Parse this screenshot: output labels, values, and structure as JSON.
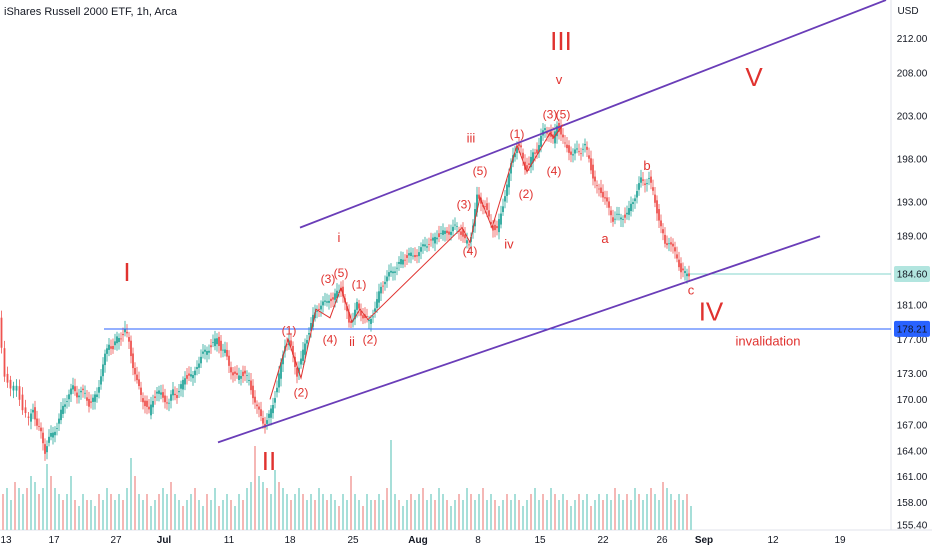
{
  "header": {
    "title": "iShares Russell 2000 ETF, 1h, Arca"
  },
  "chart_data": {
    "type": "candlestick",
    "title": "iShares Russell 2000 ETF, 1h, Arca",
    "currency_label": "USD",
    "colors": {
      "up": "#26a69a",
      "down": "#ef5350",
      "channel": "#6a3db8",
      "label": "#e0322f",
      "tag": "#86d6cc"
    },
    "x_range": [
      0,
      932
    ],
    "y_axis_ticks": [
      "212.00",
      "208.00",
      "203.00",
      "198.00",
      "193.00",
      "189.00",
      "181.00",
      "177.00",
      "173.00",
      "170.00",
      "167.00",
      "164.00",
      "161.00",
      "158.00",
      "155.40"
    ],
    "x_axis_ticks": [
      "13",
      "17",
      "27",
      "Jul",
      "11",
      "18",
      "25",
      "Aug",
      "8",
      "15",
      "22",
      "26",
      "Sep",
      "12",
      "19"
    ],
    "price_tags": [
      {
        "label": "184.60",
        "value": 184.6,
        "kind": "last-price"
      },
      {
        "label": "178.21",
        "value": 178.21,
        "kind": "invalidation-level"
      }
    ],
    "ylim": [
      154.8,
      216.5
    ],
    "path_points": [
      [
        0,
        179.5
      ],
      [
        6,
        173
      ],
      [
        12,
        171
      ],
      [
        18,
        171.6
      ],
      [
        24,
        169
      ],
      [
        30,
        167.5
      ],
      [
        34,
        169
      ],
      [
        38,
        167
      ],
      [
        42,
        166
      ],
      [
        46,
        164
      ],
      [
        50,
        165.5
      ],
      [
        54,
        166
      ],
      [
        58,
        167
      ],
      [
        62,
        168.5
      ],
      [
        66,
        169.5
      ],
      [
        70,
        170.8
      ],
      [
        74,
        171.3
      ],
      [
        78,
        170.5
      ],
      [
        82,
        171
      ],
      [
        86,
        170.5
      ],
      [
        90,
        169.5
      ],
      [
        94,
        170
      ],
      [
        98,
        170.5
      ],
      [
        102,
        173
      ],
      [
        106,
        175
      ],
      [
        110,
        176.5
      ],
      [
        114,
        176
      ],
      [
        118,
        177
      ],
      [
        122,
        177.3
      ],
      [
        126,
        178.2
      ],
      [
        130,
        176.5
      ],
      [
        134,
        174
      ],
      [
        138,
        172
      ],
      [
        142,
        170.5
      ],
      [
        146,
        169.5
      ],
      [
        150,
        168.5
      ],
      [
        154,
        170
      ],
      [
        158,
        171
      ],
      [
        162,
        170.5
      ],
      [
        166,
        170
      ],
      [
        170,
        169.5
      ],
      [
        174,
        171
      ],
      [
        178,
        170.5
      ],
      [
        182,
        171.5
      ],
      [
        186,
        172.5
      ],
      [
        190,
        173
      ],
      [
        194,
        172.5
      ],
      [
        198,
        174
      ],
      [
        202,
        175
      ],
      [
        206,
        175.5
      ],
      [
        210,
        176
      ],
      [
        214,
        176.5
      ],
      [
        218,
        177
      ],
      [
        222,
        176
      ],
      [
        226,
        175.5
      ],
      [
        230,
        174
      ],
      [
        234,
        173
      ],
      [
        238,
        172.5
      ],
      [
        242,
        173
      ],
      [
        246,
        173
      ],
      [
        250,
        172
      ],
      [
        254,
        170.5
      ],
      [
        258,
        169
      ],
      [
        262,
        168
      ],
      [
        266,
        167
      ],
      [
        270,
        168
      ],
      [
        274,
        169.5
      ],
      [
        278,
        171.5
      ],
      [
        282,
        174
      ],
      [
        286,
        176.5
      ],
      [
        290,
        176.8
      ],
      [
        294,
        175
      ],
      [
        298,
        173
      ],
      [
        302,
        174.5
      ],
      [
        306,
        176.5
      ],
      [
        310,
        178
      ],
      [
        314,
        179.5
      ],
      [
        318,
        180.5
      ],
      [
        322,
        181
      ],
      [
        326,
        181.2
      ],
      [
        330,
        181.8
      ],
      [
        334,
        181.5
      ],
      [
        338,
        182.5
      ],
      [
        342,
        183
      ],
      [
        346,
        181
      ],
      [
        350,
        179
      ],
      [
        354,
        179.5
      ],
      [
        358,
        181
      ],
      [
        362,
        180
      ],
      [
        366,
        179.5
      ],
      [
        370,
        179
      ],
      [
        374,
        180
      ],
      [
        378,
        181.5
      ],
      [
        382,
        183
      ],
      [
        386,
        184
      ],
      [
        390,
        184.5
      ],
      [
        394,
        185
      ],
      [
        398,
        185.5
      ],
      [
        402,
        186
      ],
      [
        406,
        186.5
      ],
      [
        410,
        187
      ],
      [
        414,
        186.5
      ],
      [
        418,
        187
      ],
      [
        422,
        187.5
      ],
      [
        426,
        188
      ],
      [
        430,
        188.3
      ],
      [
        434,
        188.5
      ],
      [
        438,
        189
      ],
      [
        442,
        189.5
      ],
      [
        446,
        189.3
      ],
      [
        450,
        189.5
      ],
      [
        454,
        190
      ],
      [
        458,
        190
      ],
      [
        462,
        189.5
      ],
      [
        466,
        188.5
      ],
      [
        470,
        188
      ],
      [
        474,
        190.5
      ],
      [
        478,
        193.5
      ],
      [
        482,
        193
      ],
      [
        486,
        192.5
      ],
      [
        490,
        191
      ],
      [
        494,
        190
      ],
      [
        498,
        189.8
      ],
      [
        502,
        191.5
      ],
      [
        506,
        194
      ],
      [
        510,
        196
      ],
      [
        514,
        198.5
      ],
      [
        518,
        199.5
      ],
      [
        522,
        199
      ],
      [
        526,
        197
      ],
      [
        530,
        197.3
      ],
      [
        534,
        198.5
      ],
      [
        538,
        199
      ],
      [
        542,
        200.5
      ],
      [
        546,
        201.5
      ],
      [
        550,
        201
      ],
      [
        554,
        200
      ],
      [
        558,
        202
      ],
      [
        562,
        201
      ],
      [
        566,
        199.5
      ],
      [
        570,
        199
      ],
      [
        574,
        198.5
      ],
      [
        578,
        199
      ],
      [
        582,
        199
      ],
      [
        586,
        199.5
      ],
      [
        590,
        198
      ],
      [
        594,
        196
      ],
      [
        598,
        194.5
      ],
      [
        602,
        194.2
      ],
      [
        606,
        193.5
      ],
      [
        610,
        192
      ],
      [
        614,
        191
      ],
      [
        618,
        191.5
      ],
      [
        622,
        191
      ],
      [
        626,
        191.5
      ],
      [
        630,
        192
      ],
      [
        634,
        193
      ],
      [
        638,
        194.5
      ],
      [
        642,
        195.5
      ],
      [
        646,
        195.2
      ],
      [
        650,
        195.8
      ],
      [
        654,
        194
      ],
      [
        658,
        192
      ],
      [
        662,
        190
      ],
      [
        666,
        188
      ],
      [
        670,
        188.5
      ],
      [
        674,
        187.5
      ],
      [
        678,
        186.5
      ],
      [
        682,
        185
      ],
      [
        686,
        184.6
      ],
      [
        690,
        184.6
      ]
    ],
    "volume": [
      [
        0,
        0.6
      ],
      [
        4,
        0.7
      ],
      [
        8,
        0.5
      ],
      [
        12,
        0.8
      ],
      [
        16,
        0.7
      ],
      [
        20,
        0.6
      ],
      [
        24,
        0.7
      ],
      [
        28,
        0.9
      ],
      [
        32,
        0.8
      ],
      [
        36,
        0.6
      ],
      [
        40,
        0.7
      ],
      [
        44,
        1.1
      ],
      [
        48,
        0.9
      ],
      [
        52,
        0.7
      ],
      [
        56,
        0.6
      ],
      [
        60,
        0.5
      ],
      [
        64,
        0.6
      ],
      [
        68,
        0.9
      ],
      [
        72,
        0.5
      ],
      [
        76,
        0.4
      ],
      [
        80,
        0.6
      ],
      [
        84,
        0.5
      ],
      [
        88,
        0.5
      ],
      [
        92,
        0.4
      ],
      [
        96,
        0.6
      ],
      [
        100,
        0.5
      ],
      [
        104,
        0.7
      ],
      [
        108,
        0.6
      ],
      [
        112,
        0.5
      ],
      [
        116,
        0.6
      ],
      [
        120,
        0.5
      ],
      [
        124,
        0.7
      ],
      [
        128,
        1.2
      ],
      [
        132,
        0.9
      ],
      [
        136,
        0.6
      ],
      [
        140,
        0.5
      ],
      [
        144,
        0.6
      ],
      [
        148,
        0.4
      ],
      [
        152,
        0.5
      ],
      [
        156,
        0.6
      ],
      [
        160,
        0.7
      ],
      [
        164,
        0.6
      ],
      [
        168,
        0.8
      ],
      [
        172,
        0.6
      ],
      [
        176,
        0.5
      ],
      [
        180,
        0.4
      ],
      [
        184,
        0.5
      ],
      [
        188,
        0.6
      ],
      [
        192,
        0.7
      ],
      [
        196,
        0.5
      ],
      [
        200,
        0.4
      ],
      [
        204,
        0.6
      ],
      [
        208,
        0.5
      ],
      [
        212,
        0.7
      ],
      [
        216,
        0.4
      ],
      [
        220,
        0.5
      ],
      [
        224,
        0.6
      ],
      [
        228,
        0.5
      ],
      [
        232,
        0.4
      ],
      [
        236,
        0.6
      ],
      [
        240,
        0.5
      ],
      [
        244,
        0.7
      ],
      [
        248,
        0.8
      ],
      [
        252,
        1.4
      ],
      [
        256,
        0.9
      ],
      [
        260,
        0.8
      ],
      [
        264,
        0.7
      ],
      [
        268,
        0.6
      ],
      [
        272,
        1.0
      ],
      [
        276,
        0.8
      ],
      [
        280,
        0.7
      ],
      [
        284,
        0.6
      ],
      [
        288,
        0.5
      ],
      [
        292,
        0.6
      ],
      [
        296,
        0.7
      ],
      [
        300,
        0.6
      ],
      [
        304,
        0.5
      ],
      [
        308,
        0.6
      ],
      [
        312,
        0.5
      ],
      [
        316,
        0.7
      ],
      [
        320,
        0.6
      ],
      [
        324,
        0.5
      ],
      [
        328,
        0.6
      ],
      [
        332,
        0.5
      ],
      [
        336,
        0.4
      ],
      [
        340,
        0.6
      ],
      [
        344,
        0.5
      ],
      [
        348,
        0.9
      ],
      [
        352,
        0.6
      ],
      [
        356,
        0.5
      ],
      [
        360,
        0.4
      ],
      [
        364,
        0.6
      ],
      [
        368,
        0.5
      ],
      [
        372,
        0.5
      ],
      [
        376,
        0.6
      ],
      [
        380,
        0.5
      ],
      [
        384,
        0.7
      ],
      [
        388,
        1.5
      ],
      [
        392,
        0.6
      ],
      [
        396,
        0.5
      ],
      [
        400,
        0.4
      ],
      [
        404,
        0.5
      ],
      [
        408,
        0.6
      ],
      [
        412,
        0.5
      ],
      [
        416,
        0.6
      ],
      [
        420,
        0.7
      ],
      [
        424,
        0.5
      ],
      [
        428,
        0.6
      ],
      [
        432,
        0.5
      ],
      [
        436,
        0.7
      ],
      [
        440,
        0.6
      ],
      [
        444,
        0.5
      ],
      [
        448,
        0.4
      ],
      [
        452,
        0.5
      ],
      [
        456,
        0.6
      ],
      [
        460,
        0.5
      ],
      [
        464,
        0.7
      ],
      [
        468,
        0.6
      ],
      [
        472,
        0.5
      ],
      [
        476,
        0.6
      ],
      [
        480,
        0.7
      ],
      [
        484,
        0.5
      ],
      [
        488,
        0.6
      ],
      [
        492,
        0.5
      ],
      [
        496,
        0.4
      ],
      [
        500,
        0.5
      ],
      [
        504,
        0.6
      ],
      [
        508,
        0.5
      ],
      [
        512,
        0.6
      ],
      [
        516,
        0.5
      ],
      [
        520,
        0.4
      ],
      [
        524,
        0.5
      ],
      [
        528,
        0.6
      ],
      [
        532,
        0.7
      ],
      [
        536,
        0.5
      ],
      [
        540,
        0.6
      ],
      [
        544,
        0.5
      ],
      [
        548,
        0.7
      ],
      [
        552,
        0.6
      ],
      [
        556,
        0.5
      ],
      [
        560,
        0.6
      ],
      [
        564,
        0.5
      ],
      [
        568,
        0.4
      ],
      [
        572,
        0.5
      ],
      [
        576,
        0.6
      ],
      [
        580,
        0.5
      ],
      [
        584,
        0.6
      ],
      [
        588,
        0.4
      ],
      [
        592,
        0.5
      ],
      [
        596,
        0.6
      ],
      [
        600,
        0.5
      ],
      [
        604,
        0.6
      ],
      [
        608,
        0.5
      ],
      [
        612,
        0.7
      ],
      [
        616,
        0.6
      ],
      [
        620,
        0.5
      ],
      [
        624,
        0.6
      ],
      [
        628,
        0.5
      ],
      [
        632,
        0.7
      ],
      [
        636,
        0.6
      ],
      [
        640,
        0.5
      ],
      [
        644,
        0.6
      ],
      [
        648,
        0.7
      ],
      [
        652,
        0.6
      ],
      [
        656,
        0.5
      ],
      [
        660,
        0.8
      ],
      [
        664,
        0.7
      ],
      [
        668,
        0.6
      ],
      [
        672,
        0.5
      ],
      [
        676,
        0.6
      ],
      [
        680,
        0.5
      ],
      [
        684,
        0.6
      ],
      [
        688,
        0.4
      ]
    ],
    "channel_lines": [
      {
        "name": "upper-channel",
        "from": [
          300,
          190
        ],
        "to": [
          886,
          216.5
        ]
      },
      {
        "name": "lower-channel",
        "from": [
          218,
          165
        ],
        "to": [
          820,
          189
        ]
      }
    ],
    "invalidation_line": {
      "from": [
        104,
        178.2
      ],
      "to": [
        891,
        178.2
      ]
    },
    "wave_labels": [
      {
        "text": "I",
        "x": 127,
        "y": 184.6,
        "size": 26
      },
      {
        "text": "II",
        "x": 269,
        "y": 162.6,
        "size": 26
      },
      {
        "text": "III",
        "x": 561,
        "y": 211.5,
        "size": 26
      },
      {
        "text": "IV",
        "x": 711,
        "y": 180,
        "size": 26
      },
      {
        "text": "V",
        "x": 754,
        "y": 207.3,
        "size": 26
      },
      {
        "text": "i",
        "x": 339,
        "y": 188.7,
        "size": 13
      },
      {
        "text": "ii",
        "x": 352,
        "y": 176.6,
        "size": 13
      },
      {
        "text": "iii",
        "x": 471,
        "y": 200.3,
        "size": 13
      },
      {
        "text": "iv",
        "x": 509,
        "y": 188.0,
        "size": 13
      },
      {
        "text": "v",
        "x": 559,
        "y": 207.1,
        "size": 13
      },
      {
        "text": "(1)",
        "x": 289,
        "y": 177.9,
        "size": 12
      },
      {
        "text": "(2)",
        "x": 301,
        "y": 170.7,
        "size": 12
      },
      {
        "text": "(3)",
        "x": 328,
        "y": 183.9,
        "size": 12
      },
      {
        "text": "(4)",
        "x": 330,
        "y": 176.9,
        "size": 12
      },
      {
        "text": "(5)",
        "x": 341,
        "y": 184.6,
        "size": 12
      },
      {
        "text": "(1)",
        "x": 359,
        "y": 183.3,
        "size": 12
      },
      {
        "text": "(2)",
        "x": 370,
        "y": 176.9,
        "size": 12
      },
      {
        "text": "(3)",
        "x": 464,
        "y": 192.6,
        "size": 12
      },
      {
        "text": "(4)",
        "x": 470,
        "y": 187.2,
        "size": 12
      },
      {
        "text": "(5)",
        "x": 480,
        "y": 196.5,
        "size": 12
      },
      {
        "text": "(1)",
        "x": 517,
        "y": 200.8,
        "size": 12
      },
      {
        "text": "(2)",
        "x": 526,
        "y": 193.8,
        "size": 12
      },
      {
        "text": "(3)",
        "x": 550,
        "y": 203.1,
        "size": 12
      },
      {
        "text": "(5)",
        "x": 563,
        "y": 203.1,
        "size": 12
      },
      {
        "text": "(4)",
        "x": 554,
        "y": 196.5,
        "size": 12
      },
      {
        "text": "a",
        "x": 605,
        "y": 188.6,
        "size": 13
      },
      {
        "text": "b",
        "x": 647,
        "y": 197.1,
        "size": 13
      },
      {
        "text": "c",
        "x": 691,
        "y": 182.6,
        "size": 13
      },
      {
        "text": "invalidation",
        "x": 768,
        "y": 176.7,
        "size": 13
      }
    ],
    "wave_path": [
      [
        270,
        170
      ],
      [
        288,
        177
      ],
      [
        301,
        172.5
      ],
      [
        316,
        180.5
      ],
      [
        330,
        179.5
      ],
      [
        341,
        183
      ],
      [
        352,
        179
      ],
      [
        360,
        180.5
      ],
      [
        368,
        179.3
      ],
      [
        462,
        190
      ],
      [
        470,
        188.3
      ],
      [
        480,
        193.5
      ],
      [
        492,
        190
      ],
      [
        517,
        199.6
      ],
      [
        527,
        196.5
      ],
      [
        550,
        201
      ],
      [
        554,
        200.5
      ],
      [
        563,
        202
      ]
    ]
  }
}
